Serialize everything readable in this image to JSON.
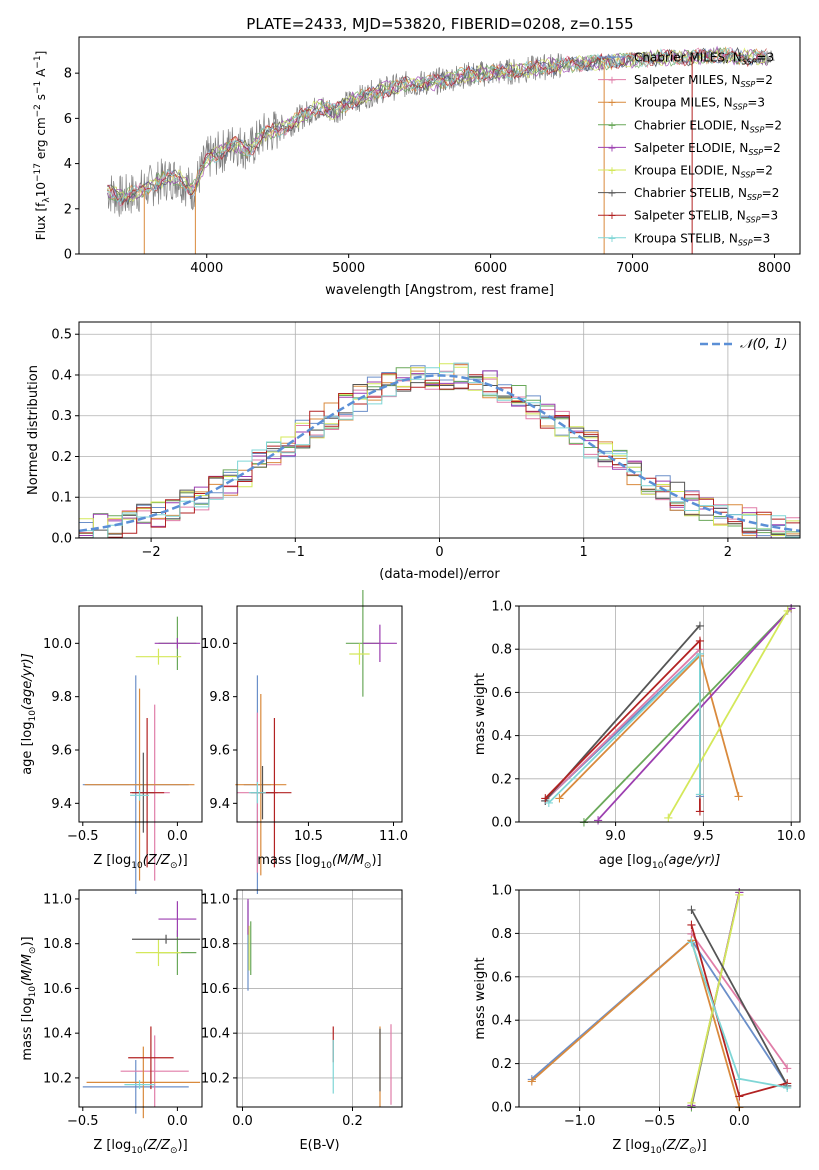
{
  "figure": {
    "title": "PLATE=2433, MJD=53820, FIBERID=0208, z=0.155"
  },
  "series_colors": [
    "#6b8fc9",
    "#e07da8",
    "#d98a3d",
    "#6aa85a",
    "#9c3fb0",
    "#d4e85a",
    "#555555",
    "#b22222",
    "#7fd6d6"
  ],
  "chart_data": [
    {
      "id": "spectrum",
      "type": "line",
      "title": "PLATE=2433, MJD=53820, FIBERID=0208, z=0.155",
      "xlabel": "wavelength [Angstrom, rest frame]",
      "ylabel_parts": [
        "Flux [f",
        "λ",
        "10",
        "−17",
        " erg cm",
        "−2",
        " s",
        "−1",
        " A",
        "−1",
        "]"
      ],
      "xlim": [
        3100,
        8180
      ],
      "ylim": [
        0,
        9.6
      ],
      "xticks": [
        4000,
        5000,
        6000,
        7000,
        8000
      ],
      "yticks": [
        0,
        2,
        4,
        6,
        8
      ],
      "legend_position": "top-right",
      "legend": [
        {
          "name": "Chabrier MILES",
          "nssp": "3"
        },
        {
          "name": "Salpeter MILES",
          "nssp": "2"
        },
        {
          "name": "Kroupa MILES",
          "nssp": "3"
        },
        {
          "name": "Chabrier ELODIE",
          "nssp": "2"
        },
        {
          "name": "Salpeter ELODIE",
          "nssp": "2"
        },
        {
          "name": "Kroupa ELODIE",
          "nssp": "2"
        },
        {
          "name": "Chabrier STELIB",
          "nssp": "2"
        },
        {
          "name": "Salpeter STELIB",
          "nssp": "3"
        },
        {
          "name": "Kroupa STELIB",
          "nssp": "3"
        }
      ],
      "legend_prefix": "N",
      "legend_sub": "SSP",
      "observed": {
        "x": [
          3300,
          3400,
          3500,
          3600,
          3700,
          3800,
          3900,
          4000,
          4100,
          4200,
          4300,
          4400,
          4500,
          4600,
          4700,
          4800,
          4900,
          5000,
          5200,
          5400,
          5600,
          5800,
          6000,
          6200,
          6400,
          6600,
          6800,
          7000,
          7200,
          7400,
          7600,
          7800
        ],
        "y": [
          2.8,
          2.5,
          2.7,
          3.0,
          3.3,
          3.4,
          2.8,
          4.2,
          4.5,
          4.9,
          4.6,
          5.3,
          5.5,
          5.8,
          6.2,
          6.5,
          6.3,
          6.7,
          7.2,
          7.5,
          7.6,
          7.9,
          8.0,
          8.1,
          8.3,
          8.4,
          8.5,
          8.6,
          8.7,
          8.7,
          8.8,
          8.7
        ]
      }
    },
    {
      "id": "residuals",
      "type": "line",
      "xlabel": "(data-model)/error",
      "ylabel": "Normed distribution",
      "xlim": [
        -2.5,
        2.5
      ],
      "ylim": [
        0,
        0.53
      ],
      "xticks": [
        -2,
        -1,
        0,
        1,
        2
      ],
      "yticks": [
        0.0,
        0.1,
        0.2,
        0.3,
        0.4,
        0.5
      ],
      "grid": true,
      "legend_position": "top-right",
      "legend_label": "𝒩(0, 1)",
      "bin_width": 0.1,
      "bins_from": -2.5
    },
    {
      "id": "age-vs-Z",
      "type": "scatter",
      "xlabel_parts": [
        "Z [log",
        "10",
        "(Z/Z",
        "⊙",
        ")]"
      ],
      "ylabel_parts": [
        "age  [log",
        "10",
        "(age/yr)]"
      ],
      "xlim": [
        -0.52,
        0.13
      ],
      "ylim": [
        9.33,
        10.14
      ],
      "xticks": [
        -0.5,
        0.0
      ],
      "yticks": [
        9.4,
        9.6,
        9.8,
        10.0
      ],
      "points": [
        {
          "x": -0.22,
          "y": 9.47,
          "xerr": 0.28,
          "yerr": 0.41
        },
        {
          "x": -0.12,
          "y": 9.44,
          "xerr": 0.08,
          "yerr": 0.33
        },
        {
          "x": -0.2,
          "y": 9.47,
          "xerr": 0.29,
          "yerr": 0.36
        },
        {
          "x": 0.0,
          "y": 10.0,
          "xerr": 0.1,
          "yerr": 0.1
        },
        {
          "x": 0.0,
          "y": 10.0,
          "xerr": 0.12,
          "yerr": 0.02
        },
        {
          "x": -0.1,
          "y": 9.95,
          "xerr": 0.12,
          "yerr": 0.03
        },
        {
          "x": -0.18,
          "y": 9.44,
          "xerr": 0.06,
          "yerr": 0.15
        },
        {
          "x": -0.16,
          "y": 9.44,
          "xerr": 0.09,
          "yerr": 0.28
        },
        {
          "x": -0.2,
          "y": 9.43,
          "xerr": 0.05,
          "yerr": 0.02
        }
      ]
    },
    {
      "id": "age-vs-mass",
      "type": "scatter",
      "xlabel_parts": [
        "mass [log",
        "10",
        "(M/M",
        "⊙",
        ")]"
      ],
      "xlim": [
        10.08,
        11.05
      ],
      "ylim": [
        9.33,
        10.14
      ],
      "xticks": [
        10.5,
        11.0
      ],
      "yticks": [
        9.4,
        9.6,
        9.8,
        10.0
      ],
      "points": [
        {
          "x": 10.2,
          "y": 9.47,
          "xerr": 0.08,
          "yerr": 0.41
        },
        {
          "x": 10.2,
          "y": 9.44,
          "xerr": 0.12,
          "yerr": 0.3
        },
        {
          "x": 10.22,
          "y": 9.47,
          "xerr": 0.15,
          "yerr": 0.34
        },
        {
          "x": 10.82,
          "y": 10.0,
          "xerr": 0.1,
          "yerr": 0.2
        },
        {
          "x": 10.92,
          "y": 10.0,
          "xerr": 0.1,
          "yerr": 0.07
        },
        {
          "x": 10.8,
          "y": 9.96,
          "xerr": 0.06,
          "yerr": 0.04
        },
        {
          "x": 10.23,
          "y": 9.44,
          "xerr": 0.07,
          "yerr": 0.1
        },
        {
          "x": 10.3,
          "y": 9.44,
          "xerr": 0.1,
          "yerr": 0.28
        },
        {
          "x": 10.2,
          "y": 9.44,
          "xerr": 0.05,
          "yerr": 0.04
        }
      ]
    },
    {
      "id": "weight-vs-age",
      "type": "line",
      "xlabel_parts": [
        "age  [log",
        "10",
        "(age/yr)]"
      ],
      "ylabel": "mass weight",
      "xlim": [
        8.45,
        10.05
      ],
      "ylim": [
        0,
        1.0
      ],
      "xticks": [
        9.0,
        9.5,
        10.0
      ],
      "yticks": [
        0.0,
        0.2,
        0.4,
        0.6,
        0.8,
        1.0
      ],
      "grid": true,
      "series": [
        {
          "x": [
            8.6,
            9.48,
            9.48
          ],
          "y": [
            0.1,
            0.78,
            0.12
          ]
        },
        {
          "x": [
            8.6,
            9.48
          ],
          "y": [
            0.1,
            0.8
          ]
        },
        {
          "x": [
            8.68,
            9.48,
            9.7
          ],
          "y": [
            0.11,
            0.77,
            0.12
          ]
        },
        {
          "x": [
            8.82,
            10.0
          ],
          "y": [
            0.0,
            0.99
          ]
        },
        {
          "x": [
            8.9,
            10.0
          ],
          "y": [
            0.01,
            0.99
          ]
        },
        {
          "x": [
            9.3,
            9.98
          ],
          "y": [
            0.02,
            0.98
          ]
        },
        {
          "x": [
            8.6,
            9.48
          ],
          "y": [
            0.1,
            0.91
          ]
        },
        {
          "x": [
            8.6,
            9.48,
            9.48
          ],
          "y": [
            0.11,
            0.84,
            0.05
          ]
        },
        {
          "x": [
            8.62,
            9.48,
            9.48
          ],
          "y": [
            0.09,
            0.78,
            0.13
          ]
        }
      ]
    },
    {
      "id": "mass-vs-Z",
      "type": "scatter",
      "xlabel_parts": [
        "Z [log",
        "10",
        "(Z/Z",
        "⊙",
        ")]"
      ],
      "ylabel_parts": [
        "mass [log",
        "10",
        "(M/M",
        "⊙",
        ")]"
      ],
      "xlim": [
        -0.52,
        0.13
      ],
      "ylim": [
        10.07,
        11.04
      ],
      "xticks": [
        -0.5,
        0.0
      ],
      "yticks": [
        10.2,
        10.4,
        10.6,
        10.8,
        11.0
      ],
      "points": [
        {
          "x": -0.22,
          "y": 10.16,
          "xerr": 0.28,
          "yerr": 0.12
        },
        {
          "x": -0.12,
          "y": 10.23,
          "xerr": 0.18,
          "yerr": 0.16
        },
        {
          "x": -0.18,
          "y": 10.18,
          "xerr": 0.3,
          "yerr": 0.16
        },
        {
          "x": 0.0,
          "y": 10.76,
          "xerr": 0.1,
          "yerr": 0.1
        },
        {
          "x": 0.0,
          "y": 10.91,
          "xerr": 0.1,
          "yerr": 0.08
        },
        {
          "x": -0.1,
          "y": 10.76,
          "xerr": 0.12,
          "yerr": 0.06
        },
        {
          "x": -0.06,
          "y": 10.82,
          "xerr": 0.18,
          "yerr": 0.02
        },
        {
          "x": -0.14,
          "y": 10.29,
          "xerr": 0.12,
          "yerr": 0.14
        },
        {
          "x": -0.2,
          "y": 10.17,
          "xerr": 0.08,
          "yerr": 0.02
        }
      ]
    },
    {
      "id": "mass-vs-ebv",
      "type": "scatter",
      "xlabel": "E(B-V)",
      "xlim": [
        -0.01,
        0.29
      ],
      "ylim": [
        10.07,
        11.04
      ],
      "xticks": [
        0.0,
        0.2
      ],
      "yticks": [
        10.2,
        10.4,
        10.6,
        10.8,
        11.0
      ],
      "grid": true,
      "points": [
        {
          "x": 0.01,
          "y": 10.79,
          "xerr": 0.0,
          "yerr": 0.2
        },
        {
          "x": 0.27,
          "y": 10.26,
          "xerr": 0.0,
          "yerr": 0.18
        },
        {
          "x": 0.25,
          "y": 10.25,
          "xerr": 0.0,
          "yerr": 0.18
        },
        {
          "x": 0.015,
          "y": 10.78,
          "xerr": 0.0,
          "yerr": 0.12
        },
        {
          "x": 0.01,
          "y": 10.92,
          "xerr": 0.0,
          "yerr": 0.08
        },
        {
          "x": 0.012,
          "y": 10.78,
          "xerr": 0.0,
          "yerr": 0.1
        },
        {
          "x": 0.25,
          "y": 10.28,
          "xerr": 0.0,
          "yerr": 0.14
        },
        {
          "x": 0.165,
          "y": 10.35,
          "xerr": 0.0,
          "yerr": 0.08
        },
        {
          "x": 0.165,
          "y": 10.25,
          "xerr": 0.0,
          "yerr": 0.12
        }
      ]
    },
    {
      "id": "weight-vs-Z",
      "type": "line",
      "xlabel_parts": [
        "Z [log",
        "10",
        "(Z/Z",
        "⊙",
        ")]"
      ],
      "ylabel": "mass weight",
      "xlim": [
        -1.38,
        0.38
      ],
      "ylim": [
        0,
        1.0
      ],
      "xticks": [
        -1.0,
        -0.5,
        0.0
      ],
      "yticks": [
        0.0,
        0.2,
        0.4,
        0.6,
        0.8,
        1.0
      ],
      "grid": true,
      "series": [
        {
          "x": [
            -1.3,
            -0.3,
            0.3
          ],
          "y": [
            0.13,
            0.77,
            0.1
          ]
        },
        {
          "x": [
            -0.3,
            0.3
          ],
          "y": [
            0.8,
            0.18
          ]
        },
        {
          "x": [
            -1.3,
            -0.3,
            0.0
          ],
          "y": [
            0.12,
            0.77,
            0.0
          ]
        },
        {
          "x": [
            -0.3,
            0.0
          ],
          "y": [
            0.0,
            0.99
          ]
        },
        {
          "x": [
            -0.3,
            0.0
          ],
          "y": [
            0.01,
            0.99
          ]
        },
        {
          "x": [
            -0.3,
            0.0
          ],
          "y": [
            0.02,
            0.98
          ]
        },
        {
          "x": [
            -0.3,
            0.3
          ],
          "y": [
            0.91,
            0.1
          ]
        },
        {
          "x": [
            -0.3,
            0.0,
            0.3
          ],
          "y": [
            0.84,
            0.05,
            0.11
          ]
        },
        {
          "x": [
            -0.3,
            0.0,
            0.3
          ],
          "y": [
            0.76,
            0.13,
            0.09
          ]
        }
      ]
    }
  ]
}
